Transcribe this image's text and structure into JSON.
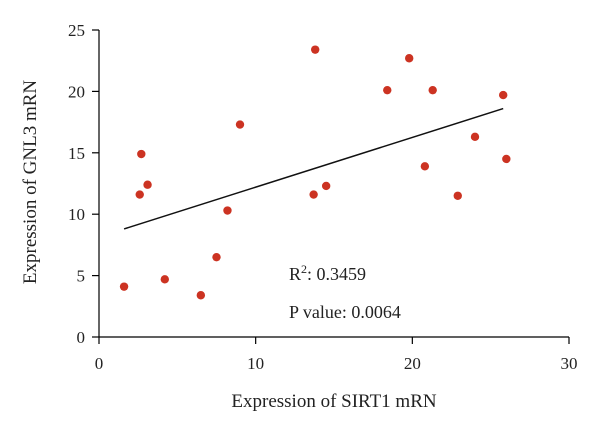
{
  "chart_data": {
    "type": "scatter",
    "xlabel": "Expression of SIRT1 mRN",
    "ylabel": "Expression of GNL3 mRN",
    "xlim": [
      0,
      30
    ],
    "ylim": [
      0,
      25
    ],
    "x_ticks": [
      "0",
      "10",
      "20",
      "30"
    ],
    "y_ticks": [
      "0",
      "5",
      "10",
      "15",
      "20",
      "25"
    ],
    "grid": false,
    "point_color": "#cc3322",
    "series": [
      {
        "x": [
          1.6,
          2.7,
          2.6,
          3.1,
          4.2,
          6.5,
          7.5,
          8.2,
          9.0,
          13.7,
          13.8,
          14.5,
          18.4,
          19.8,
          20.8,
          21.3,
          22.9,
          24.0,
          25.8,
          26.0
        ],
        "y": [
          4.1,
          14.9,
          11.6,
          12.4,
          4.7,
          3.4,
          6.5,
          10.3,
          17.3,
          11.6,
          23.4,
          12.3,
          20.1,
          22.7,
          13.9,
          20.1,
          11.5,
          16.3,
          19.7,
          14.5
        ]
      }
    ],
    "fit_line": {
      "x": [
        1.6,
        25.8
      ],
      "y": [
        8.8,
        18.6
      ]
    },
    "annotations": {
      "r2_prefix": "R",
      "r2_superscript": "2",
      "r2_value": ": 0.3459",
      "p_value": "P value: 0.0064"
    }
  }
}
